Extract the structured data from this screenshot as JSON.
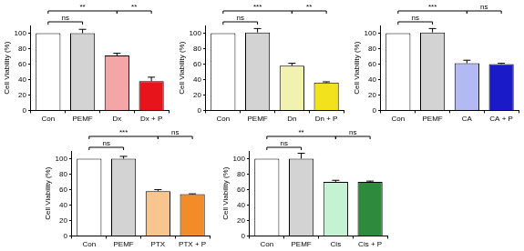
{
  "chart_data": [
    {
      "type": "bar",
      "categories": [
        "Con",
        "PEMF",
        "Dx",
        "Dx + P"
      ],
      "values": [
        100,
        100,
        71,
        38
      ],
      "errors": [
        0,
        5,
        3,
        5
      ],
      "colors": [
        "#ffffff",
        "#d3d3d3",
        "#f4a6a6",
        "#e8141c"
      ],
      "ylabel": "Cell Viability (%)",
      "ylim": [
        0,
        110
      ],
      "yticks": [
        0,
        20,
        40,
        60,
        80,
        100
      ],
      "grid": false,
      "annotations": [
        {
          "from": "Con",
          "to": "PEMF",
          "label": "ns"
        },
        {
          "from": "Con",
          "to": "Dx",
          "label": "**"
        },
        {
          "from": "Dx",
          "to": "Dx + P",
          "label": "**"
        }
      ]
    },
    {
      "type": "bar",
      "categories": [
        "Con",
        "PEMF",
        "Dn",
        "Dn + P"
      ],
      "values": [
        100,
        101,
        58,
        36
      ],
      "errors": [
        0,
        5,
        3,
        1
      ],
      "colors": [
        "#ffffff",
        "#d3d3d3",
        "#f2f2b0",
        "#f2e21e"
      ],
      "ylabel": "Cell Viability (%)",
      "ylim": [
        0,
        110
      ],
      "yticks": [
        0,
        20,
        40,
        60,
        80,
        100
      ],
      "grid": false,
      "annotations": [
        {
          "from": "Con",
          "to": "PEMF",
          "label": "ns"
        },
        {
          "from": "Con",
          "to": "Dn",
          "label": "***"
        },
        {
          "from": "Dn",
          "to": "Dn + P",
          "label": "**"
        }
      ]
    },
    {
      "type": "bar",
      "categories": [
        "Con",
        "PEMF",
        "CA",
        "CA + P"
      ],
      "values": [
        100,
        101,
        61,
        60
      ],
      "errors": [
        0,
        5,
        4,
        1
      ],
      "colors": [
        "#ffffff",
        "#d3d3d3",
        "#b3b9f2",
        "#1a1ac8"
      ],
      "ylabel": "Cell Viability (%)",
      "ylim": [
        0,
        110
      ],
      "yticks": [
        0,
        20,
        40,
        60,
        80,
        100
      ],
      "grid": false,
      "annotations": [
        {
          "from": "Con",
          "to": "PEMF",
          "label": "ns"
        },
        {
          "from": "Con",
          "to": "CA",
          "label": "***"
        },
        {
          "from": "CA",
          "to": "CA + P",
          "label": "ns"
        }
      ]
    },
    {
      "type": "bar",
      "categories": [
        "Con",
        "PEMF",
        "PTX",
        "PTX + P"
      ],
      "values": [
        100,
        100,
        58,
        54
      ],
      "errors": [
        0,
        3,
        2,
        0.5
      ],
      "colors": [
        "#ffffff",
        "#d3d3d3",
        "#f9c58e",
        "#f28c28"
      ],
      "ylabel": "Cell Viability (%)",
      "ylim": [
        0,
        110
      ],
      "yticks": [
        0,
        20,
        40,
        60,
        80,
        100
      ],
      "grid": false,
      "annotations": [
        {
          "from": "Con",
          "to": "PEMF",
          "label": "ns"
        },
        {
          "from": "Con",
          "to": "PTX",
          "label": "***"
        },
        {
          "from": "PTX",
          "to": "PTX + P",
          "label": "ns"
        }
      ]
    },
    {
      "type": "bar",
      "categories": [
        "Con",
        "PEMF",
        "Cis",
        "Cis + P"
      ],
      "values": [
        100,
        100,
        70,
        70
      ],
      "errors": [
        0,
        7,
        2,
        1
      ],
      "colors": [
        "#ffffff",
        "#d3d3d3",
        "#c5f2d2",
        "#2e8b3e"
      ],
      "ylabel": "Cell Viability (%)",
      "ylim": [
        0,
        110
      ],
      "yticks": [
        0,
        20,
        40,
        60,
        80,
        100
      ],
      "grid": false,
      "annotations": [
        {
          "from": "Con",
          "to": "PEMF",
          "label": "ns"
        },
        {
          "from": "Con",
          "to": "Cis",
          "label": "**"
        },
        {
          "from": "Cis",
          "to": "Cis + P",
          "label": "ns"
        }
      ]
    }
  ]
}
